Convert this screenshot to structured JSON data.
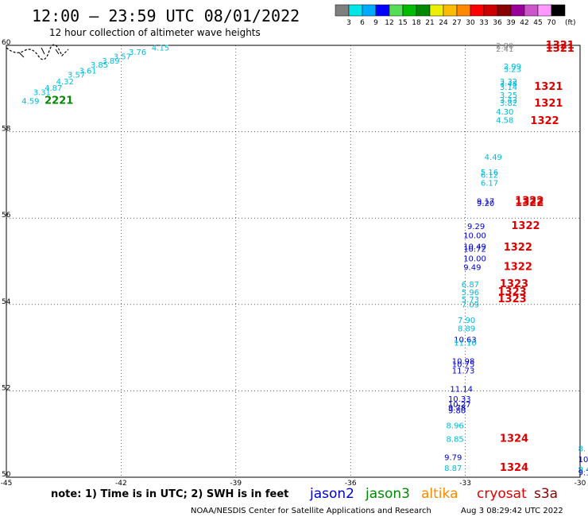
{
  "header": {
    "title": "12:00 – 23:59 UTC 08/01/2022",
    "subtitle": "12 hour collection of altimeter wave heights"
  },
  "colorbar": {
    "unit": "(ft)",
    "ticks": [
      "3",
      "6",
      "9",
      "12",
      "15",
      "18",
      "21",
      "24",
      "27",
      "30",
      "33",
      "36",
      "39",
      "42",
      "45",
      "70"
    ],
    "colors": [
      "#7f7f7f",
      "#00e6e6",
      "#00aaff",
      "#0000ff",
      "#55dd55",
      "#00bb00",
      "#008800",
      "#eeee00",
      "#ffbb00",
      "#ff8800",
      "#ff0000",
      "#cc0000",
      "#880000",
      "#990099",
      "#cc55cc",
      "#ff99ff",
      "#000000"
    ]
  },
  "footer": {
    "note": "note:  1) Time is in UTC;  2) SWH is in feet",
    "credit": "NOAA/NESDIS Center for Satellite Applications and Research",
    "timestamp": "Aug  3 08:29:42 UTC 2022",
    "legend": [
      {
        "label": "jason2",
        "color": "#0000cc"
      },
      {
        "label": "jason3",
        "color": "#008800"
      },
      {
        "label": "altika",
        "color": "#ff8800"
      },
      {
        "label": "cryosat",
        "color": "#dd0000"
      },
      {
        "label": "s3a",
        "color": "#880000"
      }
    ]
  },
  "chart_data": {
    "type": "scatter",
    "xlim": [
      -45,
      -30
    ],
    "ylim": [
      50,
      60
    ],
    "x_ticks": [
      "-45",
      "-42",
      "-39",
      "-36",
      "-33",
      "-30"
    ],
    "y_ticks": [
      "60",
      "58",
      "56",
      "54",
      "52",
      "50"
    ],
    "grid": "dotted",
    "points": [
      {
        "lon": -44.6,
        "lat": 58.65,
        "label": "4.59",
        "color": "#00bbdd"
      },
      {
        "lon": -44.3,
        "lat": 58.85,
        "label": "3.31",
        "color": "#00bbdd"
      },
      {
        "lon": -44.0,
        "lat": 58.95,
        "label": "4.87",
        "color": "#00bbdd"
      },
      {
        "lon": -43.7,
        "lat": 59.1,
        "label": "4.32",
        "color": "#00bbdd"
      },
      {
        "lon": -43.4,
        "lat": 59.25,
        "label": "3.57",
        "color": "#00bbdd"
      },
      {
        "lon": -43.1,
        "lat": 59.35,
        "label": "3.61",
        "color": "#00bbdd"
      },
      {
        "lon": -42.8,
        "lat": 59.48,
        "label": "3.85",
        "color": "#00bbdd"
      },
      {
        "lon": -42.5,
        "lat": 59.58,
        "label": "3.89",
        "color": "#00bbdd"
      },
      {
        "lon": -42.2,
        "lat": 59.68,
        "label": "3.57",
        "color": "#00bbdd"
      },
      {
        "lon": -41.8,
        "lat": 59.78,
        "label": "3.76",
        "color": "#00bbdd"
      },
      {
        "lon": -41.2,
        "lat": 59.88,
        "label": "4.15",
        "color": "#00bbdd"
      },
      {
        "lon": -44.0,
        "lat": 58.65,
        "label": "2221",
        "color": "#008800",
        "bold": true
      },
      {
        "lon": -32.2,
        "lat": 59.93,
        "label": "2.80",
        "color": "#888888"
      },
      {
        "lon": -32.2,
        "lat": 59.85,
        "label": "2.41",
        "color": "#888888"
      },
      {
        "lon": -30.9,
        "lat": 59.93,
        "label": "1321",
        "color": "#dd0000",
        "bold": true
      },
      {
        "lon": -30.9,
        "lat": 59.85,
        "label": "1321",
        "color": "#dd0000",
        "bold": true
      },
      {
        "lon": -32.0,
        "lat": 59.45,
        "label": "2.99",
        "color": "#00bbdd"
      },
      {
        "lon": -32.0,
        "lat": 59.38,
        "label": "3.23",
        "color": "#00bbdd"
      },
      {
        "lon": -32.1,
        "lat": 59.1,
        "label": "3.32",
        "color": "#00bbdd"
      },
      {
        "lon": -32.1,
        "lat": 59.05,
        "label": "3.48",
        "color": "#00bbdd"
      },
      {
        "lon": -32.1,
        "lat": 58.97,
        "label": "3.14",
        "color": "#00bbdd"
      },
      {
        "lon": -32.1,
        "lat": 58.78,
        "label": "3.25",
        "color": "#00bbdd"
      },
      {
        "lon": -32.1,
        "lat": 58.67,
        "label": "3.43",
        "color": "#00bbdd"
      },
      {
        "lon": -32.1,
        "lat": 58.6,
        "label": "3.82",
        "color": "#00bbdd"
      },
      {
        "lon": -32.2,
        "lat": 58.4,
        "label": "4.30",
        "color": "#00bbdd"
      },
      {
        "lon": -32.2,
        "lat": 58.2,
        "label": "4.58",
        "color": "#00bbdd"
      },
      {
        "lon": -31.2,
        "lat": 58.97,
        "label": "1321",
        "color": "#dd0000",
        "bold": true
      },
      {
        "lon": -31.2,
        "lat": 58.58,
        "label": "1321",
        "color": "#dd0000",
        "bold": true
      },
      {
        "lon": -31.3,
        "lat": 58.18,
        "label": "1322",
        "color": "#dd0000",
        "bold": true
      },
      {
        "lon": -32.5,
        "lat": 57.35,
        "label": "4.49",
        "color": "#00bbdd"
      },
      {
        "lon": -32.6,
        "lat": 57.0,
        "label": "5.16",
        "color": "#00bbdd"
      },
      {
        "lon": -32.6,
        "lat": 56.93,
        "label": "6.12",
        "color": "#00bbdd"
      },
      {
        "lon": -32.6,
        "lat": 56.75,
        "label": "6.17",
        "color": "#00bbdd"
      },
      {
        "lon": -32.7,
        "lat": 56.33,
        "label": "9.17",
        "color": "#0000cc"
      },
      {
        "lon": -32.7,
        "lat": 56.28,
        "label": "9.20",
        "color": "#0000cc"
      },
      {
        "lon": -31.7,
        "lat": 56.33,
        "label": "1322",
        "color": "#dd0000",
        "bold": true
      },
      {
        "lon": -31.7,
        "lat": 56.28,
        "label": "1322",
        "color": "#dd0000",
        "bold": true
      },
      {
        "lon": -32.95,
        "lat": 55.75,
        "label": "9.29",
        "color": "#0000cc"
      },
      {
        "lon": -33.05,
        "lat": 55.53,
        "label": "10.00",
        "color": "#0000cc"
      },
      {
        "lon": -33.05,
        "lat": 55.28,
        "label": "10.49",
        "color": "#0000cc"
      },
      {
        "lon": -33.05,
        "lat": 55.22,
        "label": "10.72",
        "color": "#0000cc"
      },
      {
        "lon": -33.05,
        "lat": 55.0,
        "label": "10.00",
        "color": "#0000cc"
      },
      {
        "lon": -33.05,
        "lat": 54.8,
        "label": "9.49",
        "color": "#0000cc"
      },
      {
        "lon": -31.8,
        "lat": 55.75,
        "label": "1322",
        "color": "#dd0000",
        "bold": true
      },
      {
        "lon": -32.0,
        "lat": 55.25,
        "label": "1322",
        "color": "#dd0000",
        "bold": true
      },
      {
        "lon": -32.0,
        "lat": 54.8,
        "label": "1322",
        "color": "#dd0000",
        "bold": true
      },
      {
        "lon": -33.1,
        "lat": 54.4,
        "label": "6.87",
        "color": "#00bbdd"
      },
      {
        "lon": -33.1,
        "lat": 54.22,
        "label": "5.96",
        "color": "#00bbdd"
      },
      {
        "lon": -33.1,
        "lat": 54.05,
        "label": "5.73",
        "color": "#00bbdd"
      },
      {
        "lon": -33.1,
        "lat": 53.93,
        "label": "7.09",
        "color": "#00bbdd"
      },
      {
        "lon": -32.1,
        "lat": 54.4,
        "label": "1323",
        "color": "#dd0000",
        "bold": true
      },
      {
        "lon": -32.15,
        "lat": 54.22,
        "label": "1323",
        "color": "#dd0000",
        "bold": true
      },
      {
        "lon": -32.15,
        "lat": 54.05,
        "label": "1323",
        "color": "#dd0000",
        "bold": true
      },
      {
        "lon": -33.2,
        "lat": 53.57,
        "label": "7.90",
        "color": "#00bbdd"
      },
      {
        "lon": -33.2,
        "lat": 53.38,
        "label": "8.89",
        "color": "#00bbdd"
      },
      {
        "lon": -33.3,
        "lat": 53.12,
        "label": "10.63",
        "color": "#0000cc"
      },
      {
        "lon": -33.3,
        "lat": 53.05,
        "label": "11.10",
        "color": "#00bbdd"
      },
      {
        "lon": -33.35,
        "lat": 52.62,
        "label": "10.98",
        "color": "#0000cc"
      },
      {
        "lon": -33.35,
        "lat": 52.55,
        "label": "10.75",
        "color": "#0000cc"
      },
      {
        "lon": -33.35,
        "lat": 52.4,
        "label": "11.73",
        "color": "#0000cc"
      },
      {
        "lon": -33.4,
        "lat": 51.98,
        "label": "11.14",
        "color": "#0000cc"
      },
      {
        "lon": -33.45,
        "lat": 51.75,
        "label": "10.33",
        "color": "#0000cc"
      },
      {
        "lon": -33.45,
        "lat": 51.62,
        "label": "10.27",
        "color": "#0000cc"
      },
      {
        "lon": -33.45,
        "lat": 51.55,
        "label": "9.78",
        "color": "#0000cc"
      },
      {
        "lon": -33.45,
        "lat": 51.48,
        "label": "9.80",
        "color": "#0000cc"
      },
      {
        "lon": -33.5,
        "lat": 51.13,
        "label": "8.96",
        "color": "#00bbdd"
      },
      {
        "lon": -33.5,
        "lat": 50.82,
        "label": "8.85",
        "color": "#00bbdd"
      },
      {
        "lon": -32.1,
        "lat": 50.82,
        "label": "1324",
        "color": "#dd0000",
        "bold": true
      },
      {
        "lon": -33.55,
        "lat": 50.4,
        "label": "9.79",
        "color": "#0000cc"
      },
      {
        "lon": -33.55,
        "lat": 50.15,
        "label": "8.87",
        "color": "#00bbdd"
      },
      {
        "lon": -32.1,
        "lat": 50.15,
        "label": "1324",
        "color": "#dd0000",
        "bold": true
      },
      {
        "lon": -30.05,
        "lat": 50.6,
        "label": "8.",
        "color": "#00bbdd"
      },
      {
        "lon": -30.05,
        "lat": 50.35,
        "label": "10.",
        "color": "#0000cc"
      },
      {
        "lon": -30.05,
        "lat": 50.12,
        "label": "9.4",
        "color": "#00bbdd"
      },
      {
        "lon": -30.05,
        "lat": 50.05,
        "label": "9.1",
        "color": "#0000cc"
      }
    ]
  }
}
